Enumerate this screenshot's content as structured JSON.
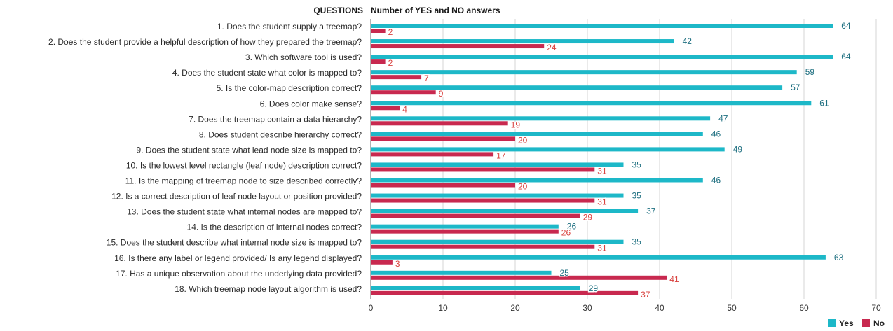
{
  "chart_data": {
    "type": "bar",
    "orientation": "horizontal",
    "header_left": "QUESTIONS",
    "header_right": "Number of YES and NO answers",
    "xlim": [
      0,
      70
    ],
    "xticks": [
      0,
      10,
      20,
      30,
      40,
      50,
      60,
      70
    ],
    "grid": true,
    "legend_position": "bottom-right",
    "categories": [
      "1. Does the student supply a treemap?",
      "2. Does the student provide a helpful description of how they prepared the treemap?",
      "3. Which software tool is used?",
      "4. Does the student state what color is mapped to?",
      "5. Is the color-map description correct?",
      "6. Does color make sense?",
      "7. Does the treemap contain a data hierarchy?",
      "8. Does student describe hierarchy correct?",
      "9. Does the student state what lead node size is mapped to?",
      "10. Is the lowest level rectangle (leaf node) description correct?",
      "11. Is the mapping of treemap node to size described correctly?",
      "12. Is a correct description of leaf node layout or position provided?",
      "13. Does the student state what internal nodes are mapped to?",
      "14. Is the description of internal nodes correct?",
      "15. Does the student describe what internal node size is mapped to?",
      "16. Is there any label or legend provided/ Is any legend displayed?",
      "17. Has a unique observation about the underlying data provided?",
      "18. Which treemap node layout algorithm is used?"
    ],
    "series": [
      {
        "name": "Yes",
        "color": "#1db8c8",
        "label_color": "#1e6f80",
        "values": [
          64,
          42,
          64,
          59,
          57,
          61,
          47,
          46,
          49,
          35,
          46,
          35,
          37,
          26,
          35,
          63,
          25,
          29
        ]
      },
      {
        "name": "No",
        "color": "#c8294f",
        "label_color": "#d9423f",
        "values": [
          2,
          24,
          2,
          7,
          9,
          4,
          19,
          20,
          17,
          31,
          20,
          31,
          29,
          26,
          31,
          3,
          41,
          37
        ]
      }
    ]
  }
}
